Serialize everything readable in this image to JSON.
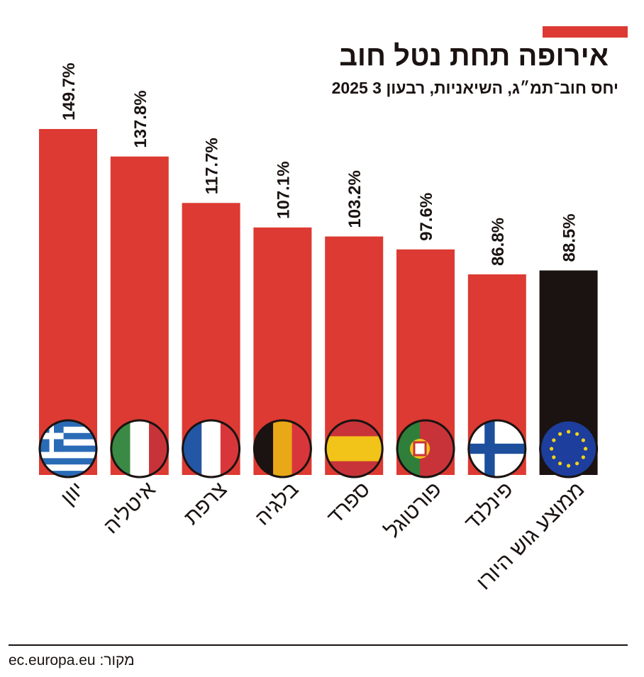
{
  "chart_data": {
    "type": "bar",
    "title": "אירופה תחת נטל חוב",
    "subtitle": "יחס חוב־תמ״ג, השיאניות, רבעון 3 2025",
    "categories": [
      "יוון",
      "איטליה",
      "צרפת",
      "בלגיה",
      "ספרד",
      "פורטוגל",
      "פינלנד",
      "ממוצע גוש היורו"
    ],
    "values": [
      149.7,
      137.8,
      117.7,
      107.1,
      103.2,
      97.6,
      86.8,
      88.5
    ],
    "value_labels": [
      "149.7%",
      "137.8%",
      "117.7%",
      "107.1%",
      "103.2%",
      "97.6%",
      "86.8%",
      "88.5%"
    ],
    "colors": [
      "#dc3a32",
      "#dc3a32",
      "#dc3a32",
      "#dc3a32",
      "#dc3a32",
      "#dc3a32",
      "#dc3a32",
      "#1a1311"
    ],
    "source": "מקור: ec.europa.eu"
  }
}
